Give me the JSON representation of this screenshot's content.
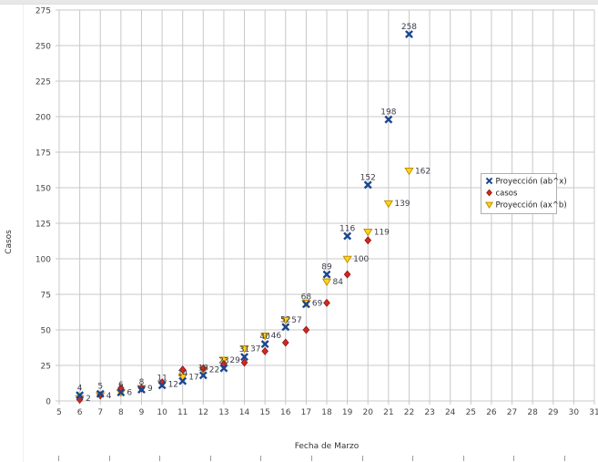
{
  "chart_data": {
    "type": "scatter",
    "title": "",
    "xlabel": "Fecha de Marzo",
    "ylabel": "Casos",
    "xlim": [
      5,
      31
    ],
    "ylim": [
      0,
      275
    ],
    "x_ticks": [
      5,
      6,
      7,
      8,
      9,
      10,
      11,
      12,
      13,
      14,
      15,
      16,
      17,
      18,
      19,
      20,
      21,
      22,
      23,
      24,
      25,
      26,
      27,
      28,
      29,
      30,
      31
    ],
    "y_ticks": [
      0,
      25,
      50,
      75,
      100,
      125,
      150,
      175,
      200,
      225,
      250,
      275
    ],
    "grid": true,
    "legend": {
      "position": "right-inside",
      "entries": [
        "Proyección (ab^x)",
        "casos",
        "Proyección (ax^b)"
      ]
    },
    "series": [
      {
        "name": "Proyección (ab^x)",
        "marker": "x-cross",
        "color": "#1B4690",
        "label_placement": "above",
        "points": [
          [
            6,
            4
          ],
          [
            7,
            5
          ],
          [
            8,
            6
          ],
          [
            9,
            8
          ],
          [
            10,
            11
          ],
          [
            11,
            14
          ],
          [
            12,
            18
          ],
          [
            13,
            23
          ],
          [
            14,
            31
          ],
          [
            15,
            40
          ],
          [
            16,
            52
          ],
          [
            17,
            68
          ],
          [
            18,
            89
          ],
          [
            19,
            116
          ],
          [
            20,
            152
          ],
          [
            21,
            198
          ],
          [
            22,
            258
          ]
        ]
      },
      {
        "name": "casos",
        "marker": "diamond",
        "color": "#D3281E",
        "marker_stroke": "#8E1510",
        "label_placement": "none",
        "points": [
          [
            6,
            1
          ],
          [
            7,
            4
          ],
          [
            8,
            9
          ],
          [
            9,
            9
          ],
          [
            10,
            13
          ],
          [
            11,
            22
          ],
          [
            12,
            23
          ],
          [
            13,
            26
          ],
          [
            14,
            27
          ],
          [
            15,
            35
          ],
          [
            16,
            41
          ],
          [
            17,
            50
          ],
          [
            18,
            69
          ],
          [
            19,
            89
          ],
          [
            20,
            113
          ]
        ]
      },
      {
        "name": "Proyección (ax^b)",
        "marker": "triangle-down",
        "color": "#FFD320",
        "marker_stroke": "#C29000",
        "label_placement": "right",
        "points": [
          [
            6,
            2
          ],
          [
            7,
            4
          ],
          [
            8,
            6
          ],
          [
            9,
            9
          ],
          [
            10,
            12
          ],
          [
            11,
            17
          ],
          [
            12,
            22
          ],
          [
            13,
            29
          ],
          [
            14,
            37
          ],
          [
            15,
            46
          ],
          [
            16,
            57
          ],
          [
            17,
            69
          ],
          [
            18,
            84
          ],
          [
            19,
            100
          ],
          [
            20,
            119
          ],
          [
            21,
            139
          ],
          [
            22,
            162
          ]
        ]
      }
    ],
    "style": {
      "grid_color": "#c8c8c8",
      "tick_label_color": "#454545",
      "data_label_color": "#3c3c4c",
      "axis_title_color": "#333333",
      "legend_border_color": "#afafaf",
      "legend_text_color": "#222222"
    }
  }
}
